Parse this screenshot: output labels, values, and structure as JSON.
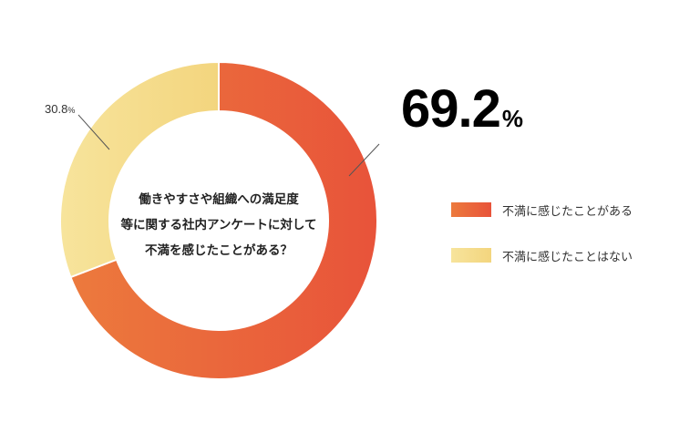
{
  "chart_data": {
    "type": "pie",
    "donut": true,
    "title_lines": [
      "働きやすさや組織への満足度",
      "等に関する社内アンケートに対して",
      "不満を感じたことがある？"
    ],
    "categories": [
      "不満に感じたことがある",
      "不満に感じたことはない"
    ],
    "values": [
      69.2,
      30.8
    ],
    "value_labels": [
      {
        "number": "69.2",
        "unit": "%"
      },
      {
        "number": "30.8",
        "unit": "%"
      }
    ],
    "colors": [
      {
        "from": "#ec7a3d",
        "to": "#e8533a"
      },
      {
        "from": "#f7e49c",
        "to": "#f3d57e"
      }
    ],
    "legend_position": "right"
  }
}
